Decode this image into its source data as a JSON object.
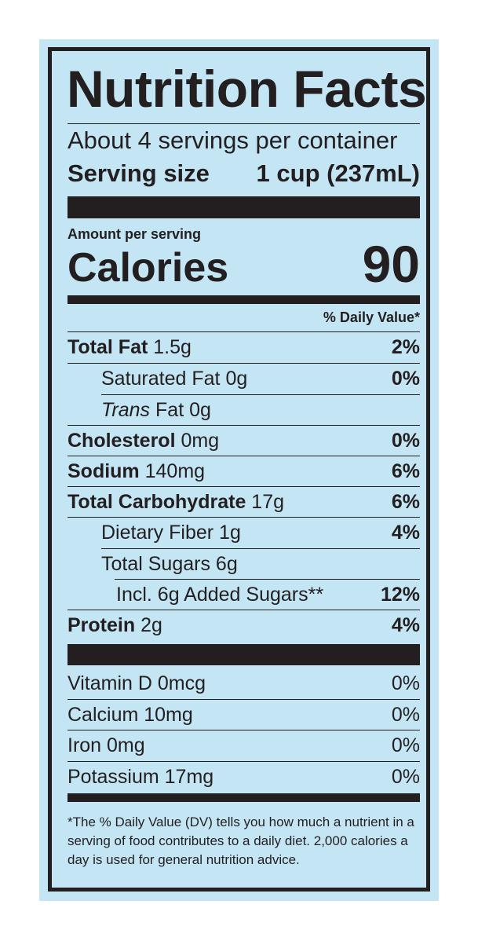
{
  "title": "Nutrition Facts",
  "servings_per_container": "About 4 servings per container",
  "serving_size": {
    "label": "Serving size",
    "value": "1 cup (237mL)"
  },
  "amount_per_serving": "Amount per serving",
  "calories": {
    "label": "Calories",
    "value": "90"
  },
  "daily_value_header": "% Daily Value*",
  "nutrients": [
    {
      "name": "Total Fat",
      "amount": "1.5g",
      "dv": "2%"
    },
    {
      "name": "Saturated Fat",
      "amount": "0g",
      "dv": "0%"
    },
    {
      "name": "Trans",
      "name2": "Fat",
      "amount": "0g",
      "dv": ""
    },
    {
      "name": "Cholesterol",
      "amount": "0mg",
      "dv": "0%"
    },
    {
      "name": "Sodium",
      "amount": "140mg",
      "dv": "6%"
    },
    {
      "name": "Total Carbohydrate",
      "amount": "17g",
      "dv": "6%"
    },
    {
      "name": "Dietary Fiber",
      "amount": "1g",
      "dv": "4%"
    },
    {
      "name": "Total Sugars",
      "amount": "6g",
      "dv": ""
    },
    {
      "name": "Incl. 6g Added Sugars**",
      "amount": "",
      "dv": "12%"
    },
    {
      "name": "Protein",
      "amount": "2g",
      "dv": "4%"
    }
  ],
  "vitamins": [
    {
      "label": "Vitamin D 0mcg",
      "dv": "0%"
    },
    {
      "label": "Calcium 10mg",
      "dv": "0%"
    },
    {
      "label": "Iron 0mg",
      "dv": "0%"
    },
    {
      "label": "Potassium 17mg",
      "dv": "0%"
    }
  ],
  "footnote": "*The % Daily Value (DV) tells you how much a nutrient in a serving of food contributes to a daily diet. 2,000 calories a day is used for general nutrition advice.",
  "colors": {
    "background": "#c3e5f4",
    "ink": "#231f20"
  }
}
